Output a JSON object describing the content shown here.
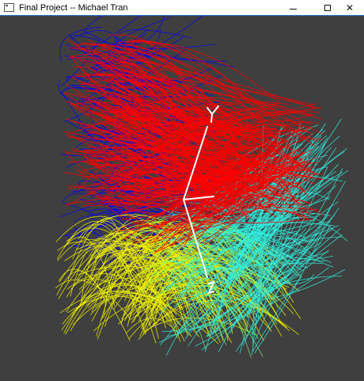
{
  "window": {
    "title": "Final Project -- Michael Tran",
    "icon": "app-window-icon"
  },
  "controls": {
    "minimize_icon": "minimize-icon",
    "maximize_icon": "maximize-icon",
    "close_icon": "close-icon",
    "close_glyph": "✕"
  },
  "viewport": {
    "background": "#3f3f3f",
    "palette": {
      "red": "#ff0000",
      "blue": "#0000ff",
      "cyan": "#30f0e0",
      "yellow": "#f0f000",
      "green": "#70ff70",
      "axis": "#ffffff"
    }
  }
}
